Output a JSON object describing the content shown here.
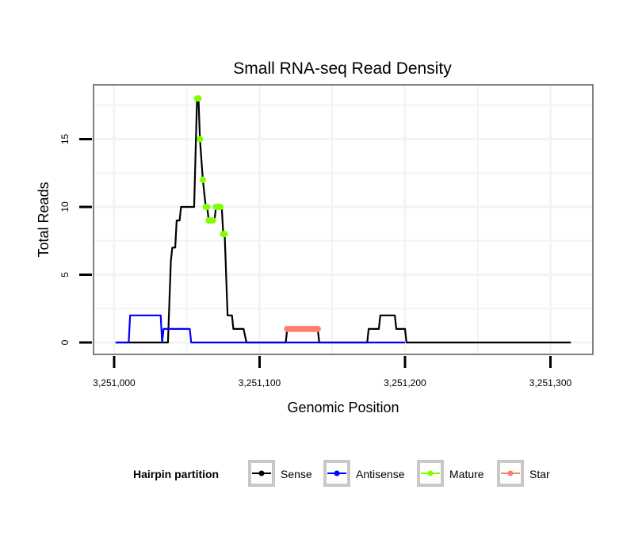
{
  "chart_data": {
    "type": "line",
    "title": "Small RNA-seq Read Density",
    "xlabel": "Genomic Position",
    "ylabel": "Total Reads",
    "xlim": [
      3250999,
      3251330
    ],
    "ylim": [
      -0.9,
      19
    ],
    "xticks": [
      3251000,
      3251100,
      3251200,
      3251300
    ],
    "xtick_labels": [
      "3,251,000",
      "3,251,100",
      "3,251,200",
      "3,251,300"
    ],
    "yticks": [
      0,
      5,
      10,
      15
    ],
    "ytick_labels": [
      "0",
      "5",
      "10",
      "15"
    ],
    "grid": true,
    "legend": {
      "title": "Hairpin partition",
      "placement": "bottom"
    },
    "series": [
      {
        "name": "Sense",
        "color": "#000000",
        "style": "line",
        "points": [
          [
            3251001,
            0
          ],
          [
            3251037,
            0
          ],
          [
            3251039,
            6
          ],
          [
            3251040,
            7
          ],
          [
            3251042,
            7
          ],
          [
            3251043,
            9
          ],
          [
            3251045,
            9
          ],
          [
            3251046,
            10
          ],
          [
            3251055,
            10
          ],
          [
            3251057,
            18
          ],
          [
            3251058,
            18
          ],
          [
            3251059,
            15
          ],
          [
            3251061,
            12
          ],
          [
            3251063,
            10
          ],
          [
            3251064,
            10
          ],
          [
            3251065,
            9
          ],
          [
            3251069,
            9
          ],
          [
            3251070,
            10
          ],
          [
            3251074,
            10
          ],
          [
            3251075,
            8
          ],
          [
            3251076,
            8
          ],
          [
            3251078,
            2
          ],
          [
            3251081,
            2
          ],
          [
            3251082,
            1
          ],
          [
            3251089,
            1
          ],
          [
            3251091,
            0
          ],
          [
            3251118,
            0
          ],
          [
            3251119,
            1
          ],
          [
            3251140,
            1
          ],
          [
            3251141,
            0
          ],
          [
            3251174,
            0
          ],
          [
            3251175,
            1
          ],
          [
            3251182,
            1
          ],
          [
            3251183,
            2
          ],
          [
            3251193,
            2
          ],
          [
            3251194,
            1
          ],
          [
            3251200,
            1
          ],
          [
            3251201,
            0
          ],
          [
            3251314,
            0
          ]
        ]
      },
      {
        "name": "Antisense",
        "color": "#0000ff",
        "style": "line",
        "points": [
          [
            3251001,
            0
          ],
          [
            3251010,
            0
          ],
          [
            3251011,
            2
          ],
          [
            3251032,
            2
          ],
          [
            3251033,
            0
          ],
          [
            3251034,
            1
          ],
          [
            3251052,
            1
          ],
          [
            3251053,
            0
          ],
          [
            3251200,
            0
          ]
        ]
      },
      {
        "name": "Mature",
        "color": "#7fff00",
        "style": "points",
        "points": [
          [
            3251057,
            18
          ],
          [
            3251058,
            18
          ],
          [
            3251059,
            15
          ],
          [
            3251061,
            12
          ],
          [
            3251063,
            10
          ],
          [
            3251064,
            10
          ],
          [
            3251065,
            9
          ],
          [
            3251066,
            9
          ],
          [
            3251067,
            9
          ],
          [
            3251068,
            9
          ],
          [
            3251070,
            10
          ],
          [
            3251071,
            10
          ],
          [
            3251072,
            10
          ],
          [
            3251073,
            10
          ],
          [
            3251075,
            8
          ],
          [
            3251076,
            8
          ]
        ]
      },
      {
        "name": "Star",
        "color": "#fa8072",
        "style": "points",
        "points": [
          [
            3251119,
            1
          ],
          [
            3251121,
            1
          ],
          [
            3251123,
            1
          ],
          [
            3251125,
            1
          ],
          [
            3251127,
            1
          ],
          [
            3251129,
            1
          ],
          [
            3251131,
            1
          ],
          [
            3251133,
            1
          ],
          [
            3251135,
            1
          ],
          [
            3251137,
            1
          ],
          [
            3251139,
            1
          ],
          [
            3251140,
            1
          ]
        ]
      }
    ]
  }
}
